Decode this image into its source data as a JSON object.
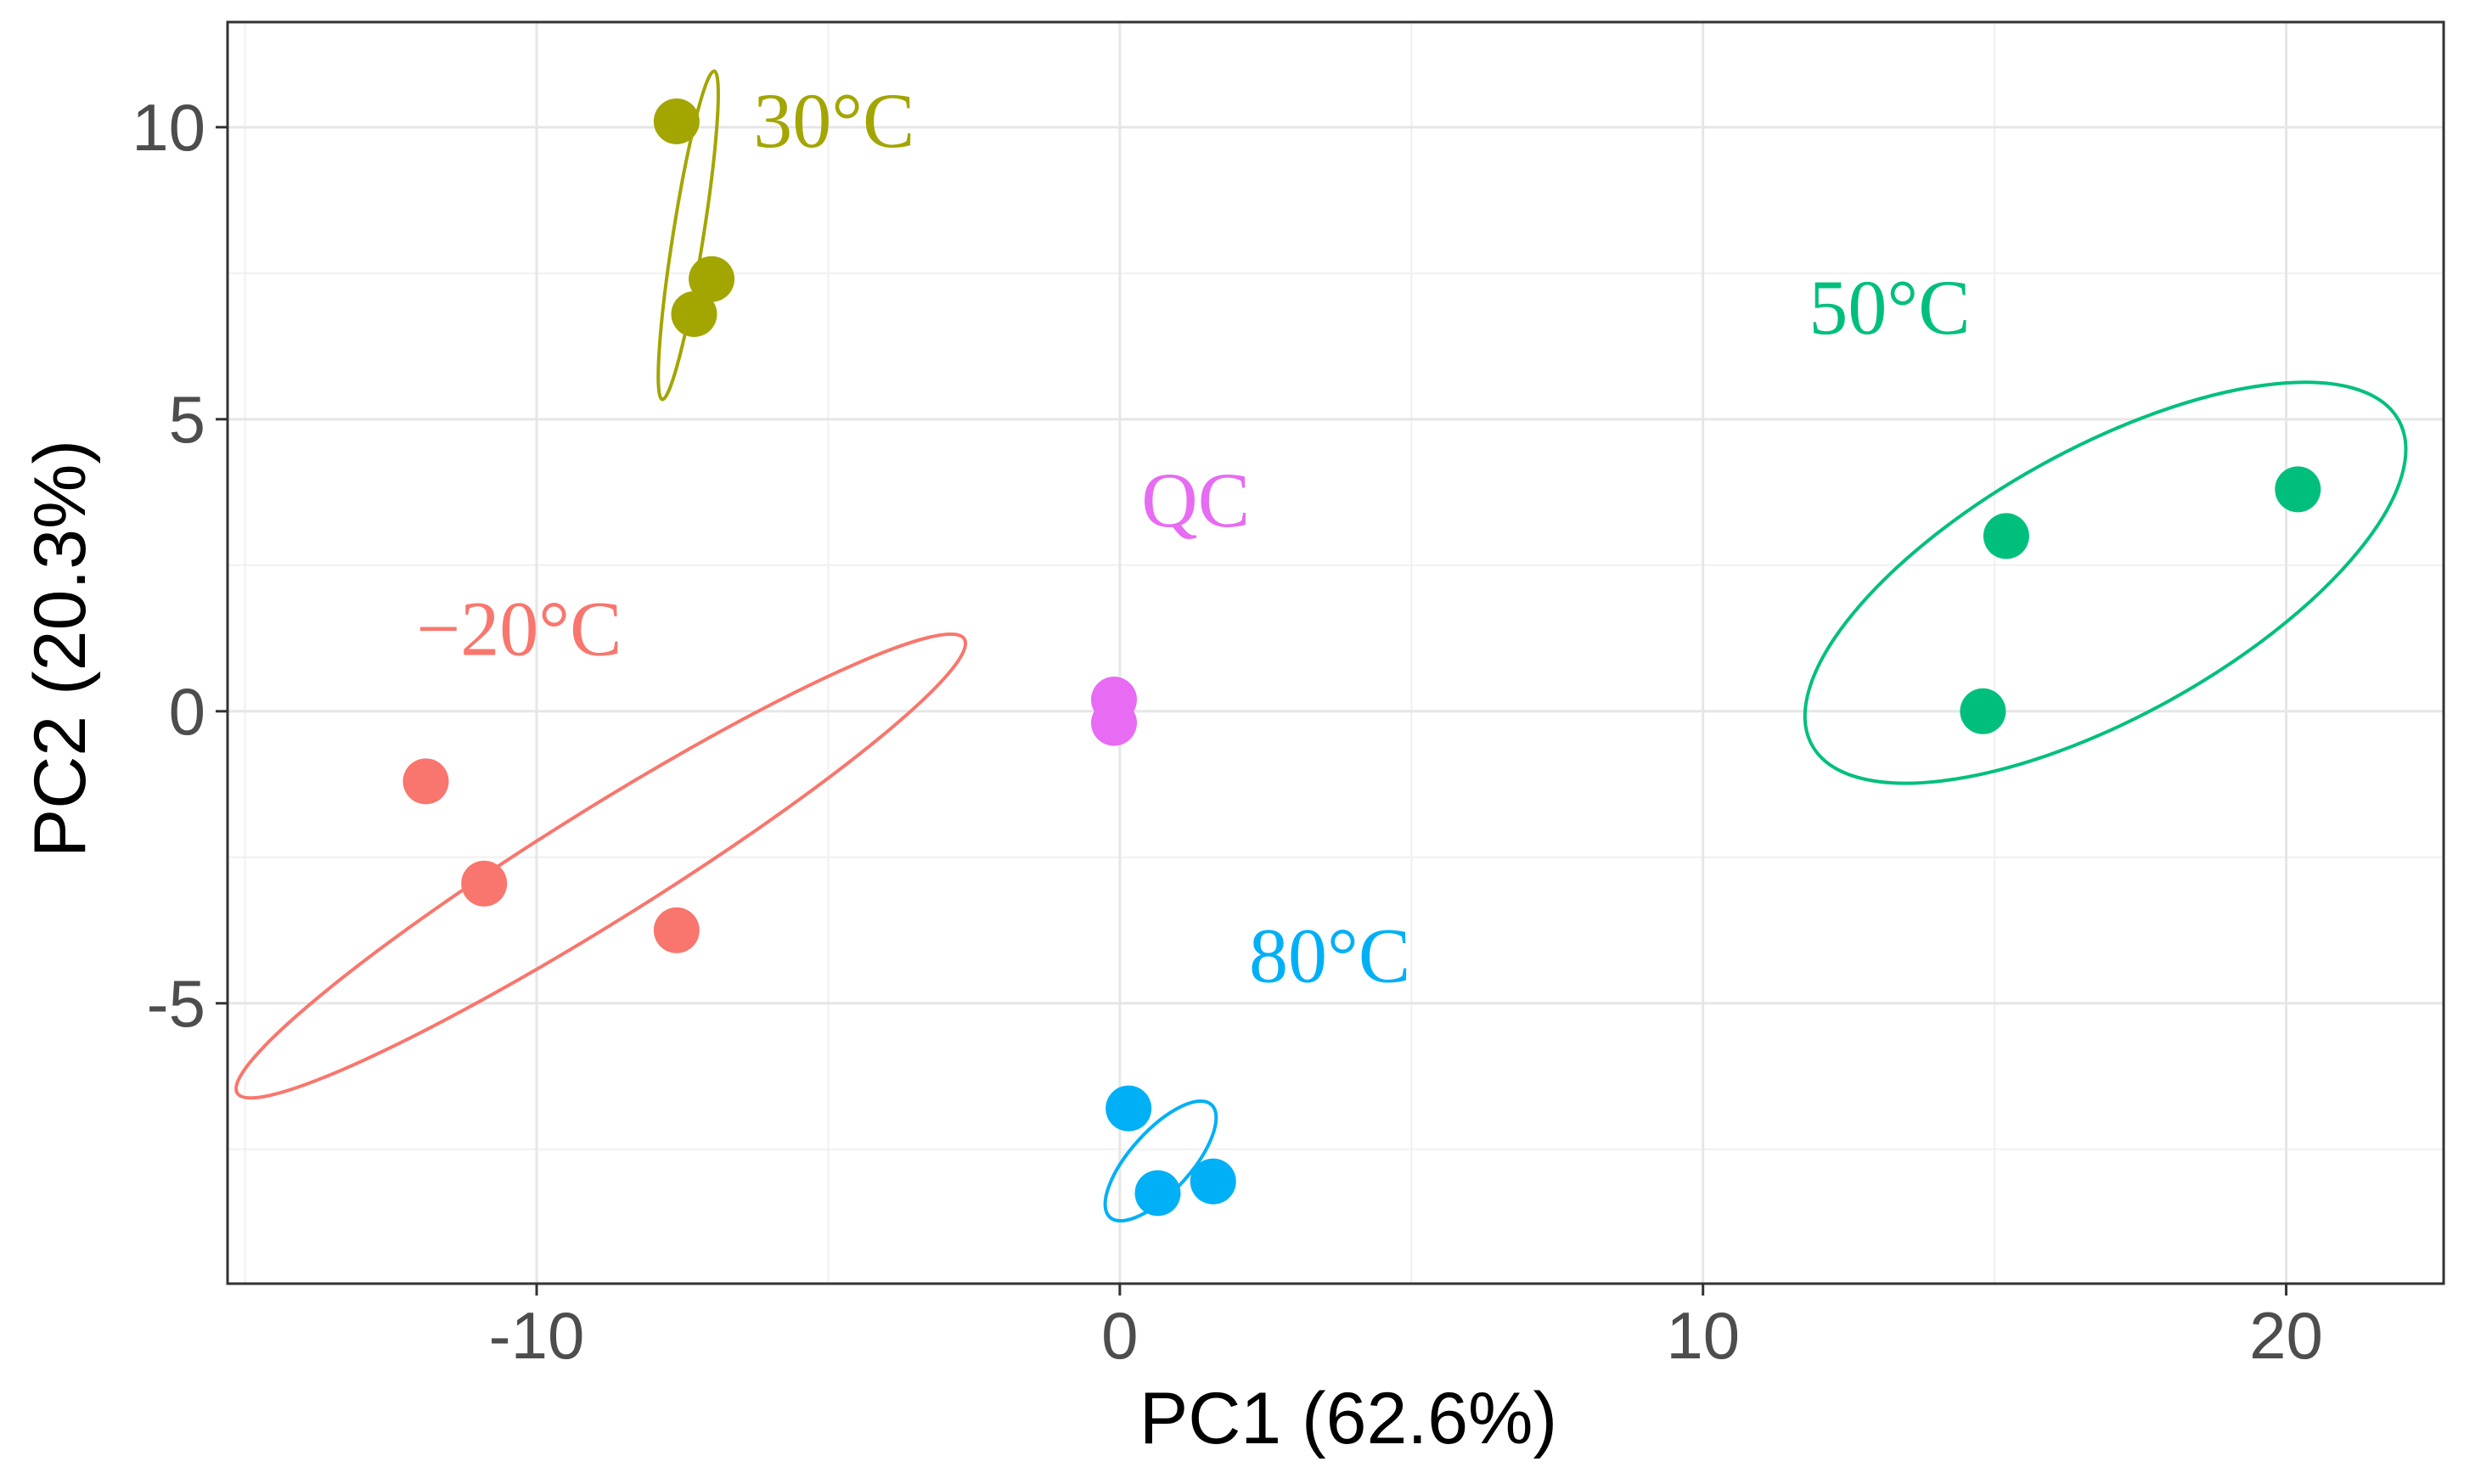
{
  "chart_data": {
    "type": "scatter",
    "title": "",
    "xlabel": "PC1 (62.6%)",
    "ylabel": "PC2 (20.3%)",
    "xlim": [
      -15.3,
      22.7
    ],
    "ylim": [
      -9.8,
      11.8
    ],
    "x_ticks": [
      -10,
      0,
      10,
      20
    ],
    "x_minor_ticks": [
      -15,
      -5,
      5,
      15
    ],
    "x_tick_labels": [
      "-10",
      "0",
      "10",
      "20"
    ],
    "y_ticks": [
      -5,
      0,
      5,
      10
    ],
    "y_minor_ticks": [
      -7.5,
      -2.5,
      2.5,
      7.5
    ],
    "y_tick_labels": [
      "-5",
      "0",
      "5",
      "10"
    ],
    "grid": true,
    "legend": "none",
    "series": [
      {
        "name": "−20°C",
        "color": "#F8766D",
        "points": [
          {
            "x": -11.9,
            "y": -1.2
          },
          {
            "x": -10.9,
            "y": -2.95
          },
          {
            "x": -7.6,
            "y": -3.75
          }
        ],
        "ellipse": {
          "cx": -8.9,
          "cy": -2.65,
          "rx": 7.35,
          "ry": 0.95,
          "angle_deg": -32
        },
        "label": {
          "text": "−20°C",
          "x": -10.3,
          "y": 1.4
        }
      },
      {
        "name": "30°C",
        "color": "#A3A500",
        "points": [
          {
            "x": -7.6,
            "y": 10.1
          },
          {
            "x": -7.0,
            "y": 7.4
          },
          {
            "x": -7.3,
            "y": 6.8
          }
        ],
        "ellipse": {
          "cx": -7.4,
          "cy": 8.15,
          "rx": 2.85,
          "ry": 0.26,
          "angle_deg": -81
        },
        "label": {
          "text": "30°C",
          "x": -4.9,
          "y": 10.1
        }
      },
      {
        "name": "QC",
        "color": "#E76BF3",
        "points": [
          {
            "x": -0.1,
            "y": 0.2
          },
          {
            "x": -0.1,
            "y": -0.2
          }
        ],
        "label": {
          "text": "QC",
          "x": 1.3,
          "y": 3.6
        }
      },
      {
        "name": "80°C",
        "color": "#00B0F6",
        "points": [
          {
            "x": 0.15,
            "y": -6.8
          },
          {
            "x": 0.65,
            "y": -8.25
          },
          {
            "x": 1.6,
            "y": -8.05
          }
        ],
        "ellipse": {
          "cx": 0.7,
          "cy": -7.7,
          "rx": 1.3,
          "ry": 0.52,
          "angle_deg": -48
        },
        "label": {
          "text": "80°C",
          "x": 3.6,
          "y": -4.2
        }
      },
      {
        "name": "50°C",
        "color": "#00BF7D",
        "points": [
          {
            "x": 15.2,
            "y": 3.0
          },
          {
            "x": 20.2,
            "y": 3.8
          },
          {
            "x": 14.8,
            "y": 0.0
          }
        ],
        "ellipse": {
          "cx": 16.9,
          "cy": 2.2,
          "rx": 5.75,
          "ry": 2.3,
          "angle_deg": -29
        },
        "label": {
          "text": "50°C",
          "x": 13.2,
          "y": 6.9
        }
      }
    ]
  }
}
